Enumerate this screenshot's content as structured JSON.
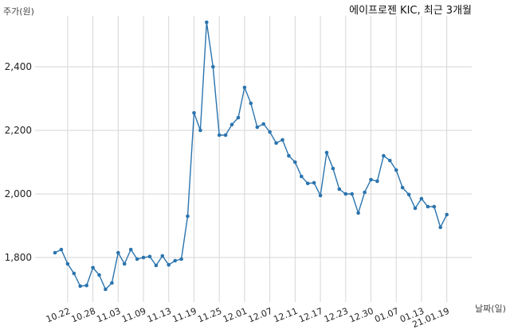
{
  "chart_data": {
    "type": "line",
    "title": "에이프로젠 KIC, 최근 3개월",
    "ylabel": "주가(원)",
    "xlabel": "날짜(일)",
    "ylim": [
      1660,
      2560
    ],
    "yticks": [
      1800,
      2000,
      2200,
      2400
    ],
    "ytick_labels": [
      "1,800",
      "2,000",
      "2,200",
      "2,400"
    ],
    "grid": true,
    "color": "#2b74ae",
    "x_ticks": [
      {
        "label": "10.22",
        "index": 2
      },
      {
        "label": "10.28",
        "index": 6
      },
      {
        "label": "11.03",
        "index": 10
      },
      {
        "label": "11.09",
        "index": 14
      },
      {
        "label": "11.13",
        "index": 18
      },
      {
        "label": "11.19",
        "index": 22
      },
      {
        "label": "11.25",
        "index": 26
      },
      {
        "label": "12.01",
        "index": 30
      },
      {
        "label": "12.07",
        "index": 34
      },
      {
        "label": "12.11",
        "index": 38
      },
      {
        "label": "12.17",
        "index": 42
      },
      {
        "label": "12.23",
        "index": 46
      },
      {
        "label": "12.30",
        "index": 50
      },
      {
        "label": "01.07",
        "index": 54
      },
      {
        "label": "01.13",
        "index": 58
      },
      {
        "label": "21.01.19",
        "index": 62
      }
    ],
    "values": [
      1815,
      1825,
      1780,
      1750,
      1710,
      1712,
      1768,
      1745,
      1700,
      1720,
      1815,
      1780,
      1825,
      1795,
      1800,
      1803,
      1775,
      1805,
      1777,
      1790,
      1795,
      1930,
      2255,
      2200,
      2540,
      2400,
      2185,
      2185,
      2218,
      2240,
      2335,
      2285,
      2210,
      2220,
      2195,
      2160,
      2170,
      2120,
      2100,
      2055,
      2033,
      2035,
      1995,
      2130,
      2080,
      2015,
      2000,
      2000,
      1940,
      2005,
      2045,
      2040,
      2120,
      2105,
      2075,
      2020,
      1998,
      1955,
      1985,
      1960,
      1960,
      1895,
      1935
    ]
  }
}
